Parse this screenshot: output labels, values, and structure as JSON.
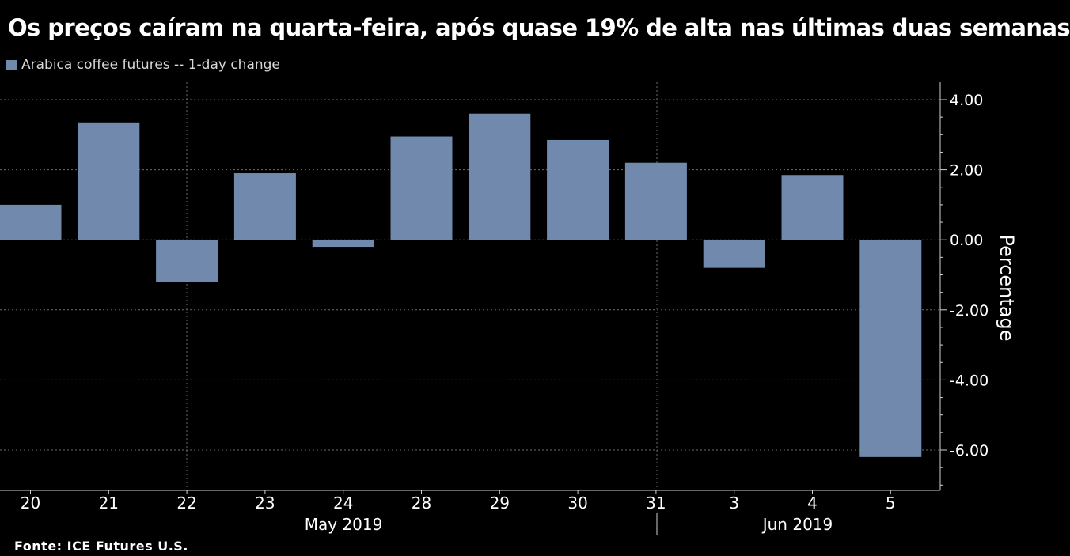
{
  "title": "Os preços caíram na quarta-feira, após quase 19% de alta nas últimas duas semanas",
  "legend": {
    "label": "Arabica coffee futures -- 1-day change",
    "color": "#7189ad"
  },
  "source": "Fonte: ICE Futures U.S.",
  "chart_data": {
    "type": "bar",
    "title": "Os preços caíram na quarta-feira, após quase 19% de alta nas últimas duas semanas",
    "xlabel": "",
    "ylabel": "Percentage",
    "ylim": [
      -7,
      4.5
    ],
    "yticks": [
      4,
      2,
      0,
      -2,
      -4,
      -6
    ],
    "ytick_labels": [
      "4.00",
      "2.00",
      "0.00",
      "-2.00",
      "-4.00",
      "-6.00"
    ],
    "categories": [
      "20",
      "21",
      "22",
      "23",
      "24",
      "28",
      "29",
      "30",
      "31",
      "3",
      "4",
      "5"
    ],
    "series": [
      {
        "name": "Arabica coffee futures -- 1-day change",
        "values": [
          1.0,
          3.35,
          -1.2,
          1.9,
          -0.2,
          2.95,
          3.6,
          2.85,
          2.2,
          -0.8,
          1.85,
          -6.2
        ]
      }
    ],
    "month_labels": [
      "May 2019",
      "Jun 2019"
    ],
    "month_spans": [
      [
        0,
        8
      ],
      [
        9,
        11
      ]
    ],
    "grid": true,
    "legend_position": "top-left",
    "bar_color": "#7189ad"
  }
}
